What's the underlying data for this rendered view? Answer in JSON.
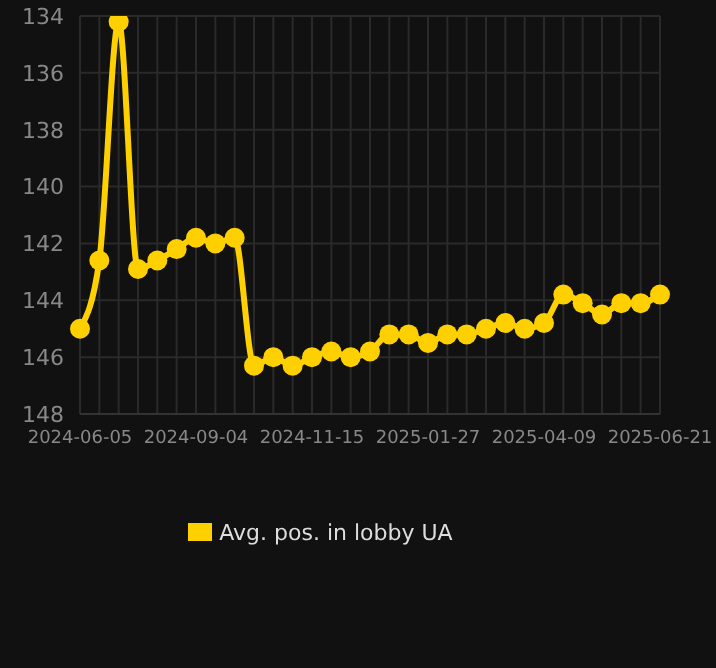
{
  "chart_data": {
    "type": "line",
    "categories": [
      "2024-06-05",
      null,
      null,
      null,
      null,
      null,
      "2024-09-04",
      null,
      null,
      null,
      null,
      null,
      "2024-11-15",
      null,
      null,
      null,
      null,
      null,
      "2025-01-27",
      null,
      null,
      null,
      null,
      null,
      "2025-04-09",
      null,
      null,
      null,
      null,
      null,
      "2025-06-21"
    ],
    "series": [
      {
        "name": "Avg. pos. in lobby UA",
        "color": "#ffd000",
        "values": [
          145.0,
          142.6,
          134.2,
          142.9,
          142.6,
          142.2,
          141.8,
          142.0,
          141.8,
          146.3,
          146.0,
          146.3,
          146.0,
          145.8,
          146.0,
          145.8,
          145.2,
          145.2,
          145.5,
          145.2,
          145.2,
          145.0,
          144.8,
          145.0,
          144.8,
          143.8,
          144.1,
          144.5,
          144.1,
          144.1,
          143.8
        ]
      }
    ],
    "ylim": [
      148,
      134
    ],
    "yticks": [
      134,
      136,
      138,
      140,
      142,
      144,
      146,
      148
    ],
    "grid": true,
    "legend": "bottom",
    "marker": "circle",
    "line_style": "solid"
  }
}
